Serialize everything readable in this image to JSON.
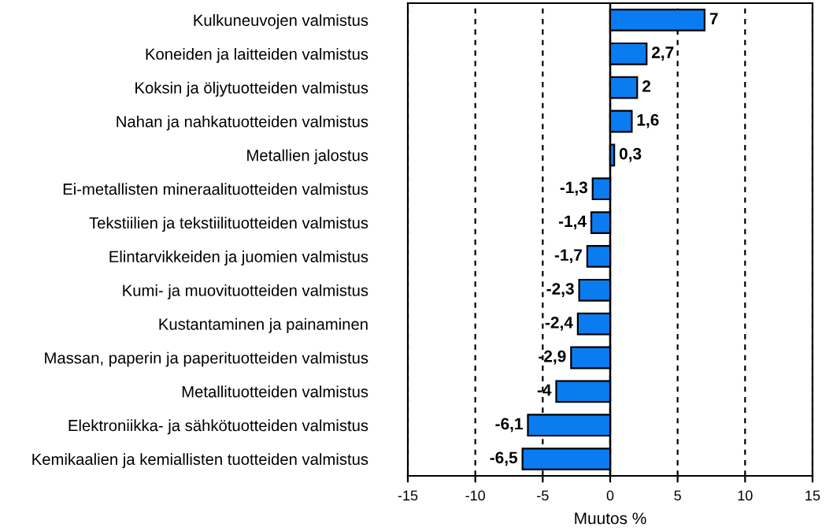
{
  "chart_data": {
    "type": "bar",
    "orientation": "horizontal",
    "xlabel": "Muutos %",
    "categories": [
      "Kulkuneuvojen valmistus",
      "Koneiden ja laitteiden valmistus",
      "Koksin ja öljytuotteiden valmistus",
      "Nahan ja nahkatuotteiden valmistus",
      "Metallien jalostus",
      "Ei-metallisten mineraalituotteiden valmistus",
      "Tekstiilien ja tekstiilituotteiden valmistus",
      "Elintarvikkeiden ja juomien valmistus",
      "Kumi- ja muovituotteiden valmistus",
      "Kustantaminen ja painaminen",
      "Massan, paperin ja paperituotteiden valmistus",
      "Metallituotteiden valmistus",
      "Elektroniikka- ja sähkötuotteiden valmistus",
      "Kemikaalien ja kemiallisten tuotteiden valmistus"
    ],
    "values": [
      7,
      2.7,
      2,
      1.6,
      0.3,
      -1.3,
      -1.4,
      -1.7,
      -2.3,
      -2.4,
      -2.9,
      -4,
      -6.1,
      -6.5
    ],
    "value_labels": [
      "7",
      "2,7",
      "2",
      "1,6",
      "0,3",
      "-1,3",
      "-1,4",
      "-1,7",
      "-2,3",
      "-2,4",
      "-2,9",
      "-4",
      "-6,1",
      "-6,5"
    ],
    "color": "#0a7cf0",
    "xlim": [
      -15,
      15
    ],
    "xticks": [
      -15,
      -10,
      -5,
      0,
      5,
      10,
      15
    ],
    "grid": "x",
    "line_style": "dashed"
  }
}
